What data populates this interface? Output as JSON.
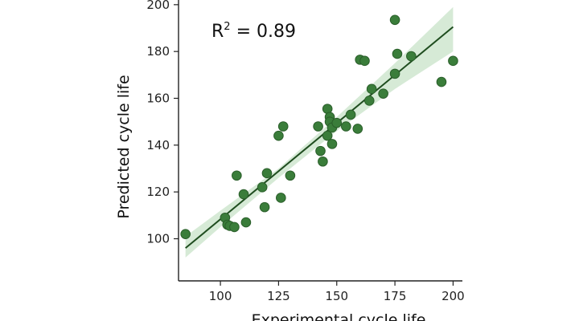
{
  "chart_data": {
    "type": "scatter",
    "xlabel": "Experimental cycle life",
    "ylabel": "Predicted cycle life",
    "xlim": [
      82,
      204
    ],
    "ylim": [
      82,
      202
    ],
    "xticks": [
      100,
      125,
      150,
      175,
      200
    ],
    "yticks": [
      100,
      120,
      140,
      160,
      180,
      200
    ],
    "annotation": {
      "base": "R",
      "sup": "2",
      "rest": " = 0.89"
    },
    "fit_line": {
      "x": [
        85,
        200
      ],
      "y": [
        96,
        190.5
      ]
    },
    "confidence_band": {
      "x": [
        85,
        100,
        125,
        150,
        175,
        200
      ],
      "lower": [
        92,
        105,
        126,
        146,
        164,
        180
      ],
      "upper": [
        101,
        112,
        130,
        152,
        175,
        199
      ]
    },
    "grid": false,
    "colors": {
      "points": "#3a7d3a",
      "point_edge": "#2a5e2a",
      "line": "#1f4d1f",
      "band": "#cfe6cf"
    },
    "points": [
      {
        "x": 85,
        "y": 102
      },
      {
        "x": 102,
        "y": 109
      },
      {
        "x": 103,
        "y": 106
      },
      {
        "x": 104,
        "y": 105.5
      },
      {
        "x": 106,
        "y": 105
      },
      {
        "x": 107,
        "y": 127
      },
      {
        "x": 110,
        "y": 119
      },
      {
        "x": 111,
        "y": 107
      },
      {
        "x": 118,
        "y": 122
      },
      {
        "x": 119,
        "y": 113.5
      },
      {
        "x": 120,
        "y": 128
      },
      {
        "x": 125,
        "y": 144
      },
      {
        "x": 126,
        "y": 117.5
      },
      {
        "x": 127,
        "y": 148
      },
      {
        "x": 130,
        "y": 127
      },
      {
        "x": 142,
        "y": 148
      },
      {
        "x": 143,
        "y": 137.5
      },
      {
        "x": 144,
        "y": 133
      },
      {
        "x": 146,
        "y": 155.5
      },
      {
        "x": 146,
        "y": 144
      },
      {
        "x": 147,
        "y": 152
      },
      {
        "x": 147,
        "y": 150
      },
      {
        "x": 148,
        "y": 147.5
      },
      {
        "x": 148,
        "y": 140.5
      },
      {
        "x": 150,
        "y": 149.5
      },
      {
        "x": 154,
        "y": 148
      },
      {
        "x": 156,
        "y": 153
      },
      {
        "x": 159,
        "y": 147
      },
      {
        "x": 160,
        "y": 176.5
      },
      {
        "x": 162,
        "y": 176
      },
      {
        "x": 164,
        "y": 159
      },
      {
        "x": 165,
        "y": 164
      },
      {
        "x": 170,
        "y": 162
      },
      {
        "x": 175,
        "y": 193.5
      },
      {
        "x": 175,
        "y": 170.5
      },
      {
        "x": 176,
        "y": 179
      },
      {
        "x": 182,
        "y": 178
      },
      {
        "x": 195,
        "y": 167
      },
      {
        "x": 200,
        "y": 176
      }
    ]
  }
}
